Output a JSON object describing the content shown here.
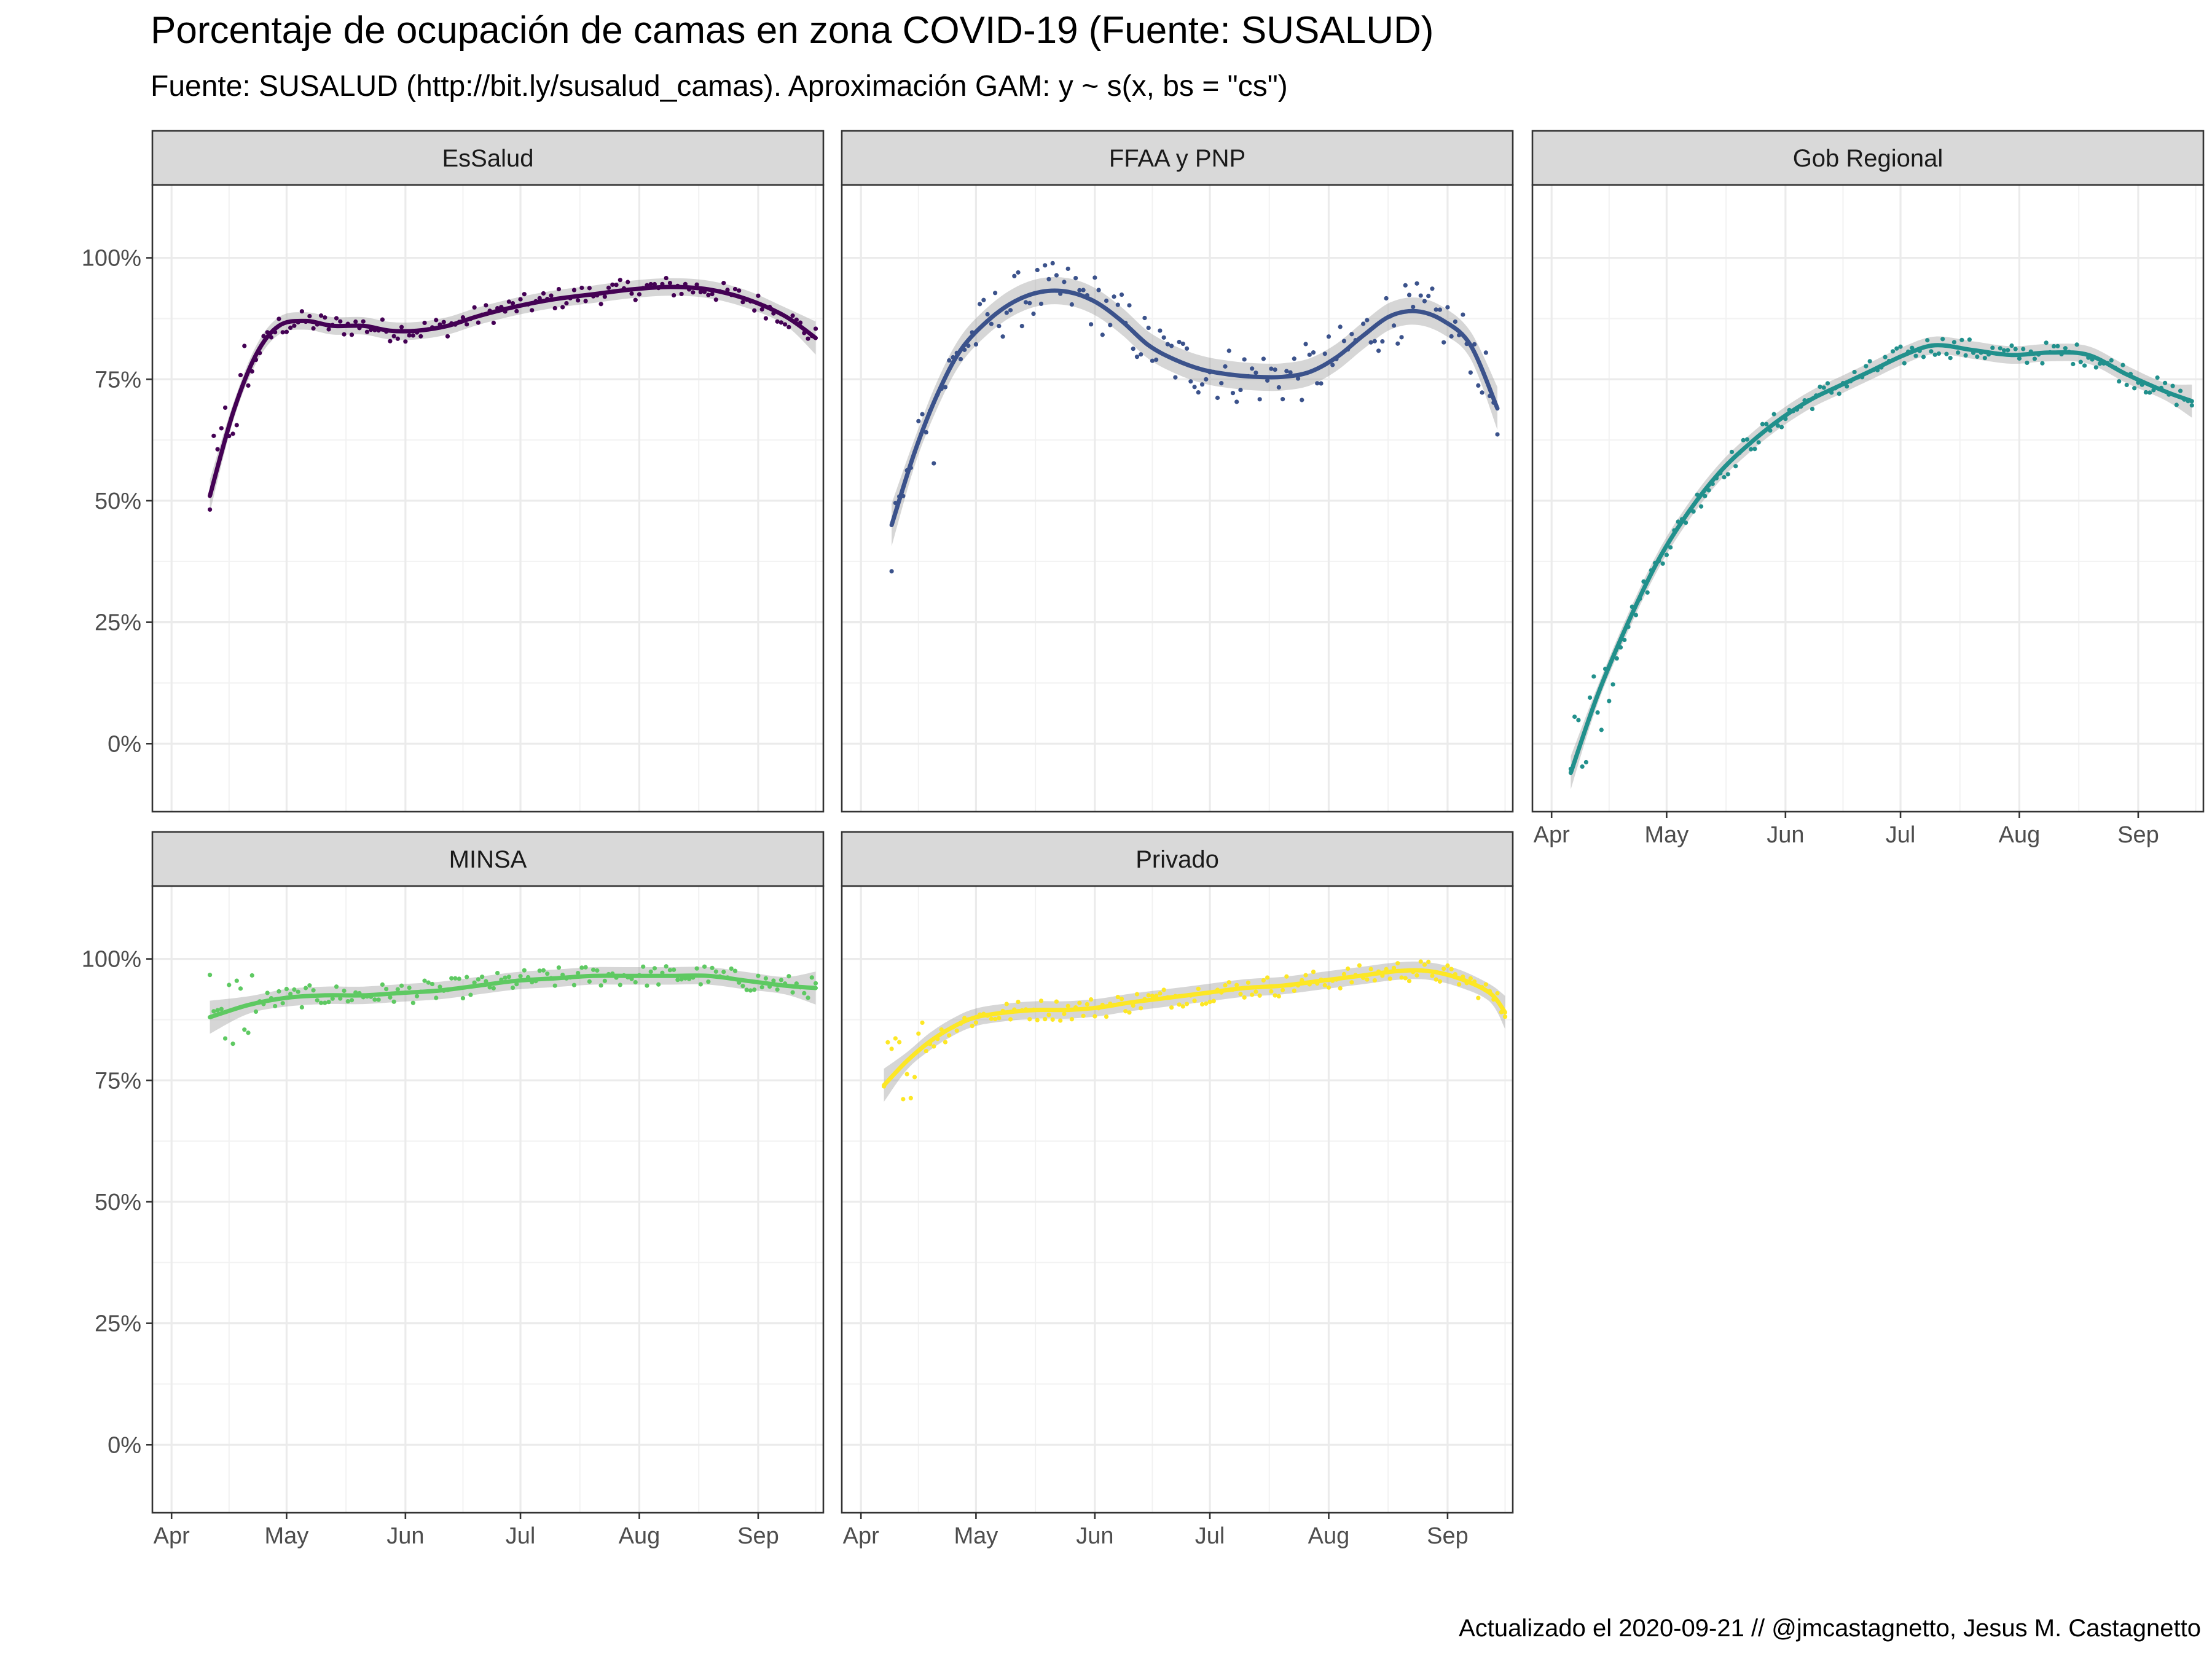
{
  "title": "Porcentaje de ocupación de camas en zona COVID-19 (Fuente: SUSALUD)",
  "subtitle": "Fuente: SUSALUD (http://bit.ly/susalud_camas). Aproximación GAM: y ~ s(x, bs = \"cs\")",
  "caption": "Actualizado el 2020-09-21 // @jmcastagnetto, Jesus M. Castagnetto",
  "chart_data": {
    "type": "line",
    "description_of_layout": "faceted",
    "x_ticks": [
      "Apr",
      "May",
      "Jun",
      "Jul",
      "Aug",
      "Sep"
    ],
    "x_tick_days": [
      0,
      30,
      61,
      91,
      122,
      153
    ],
    "x_range_days": [
      -5,
      170
    ],
    "y_ticks": [
      "0%",
      "25%",
      "50%",
      "75%",
      "100%"
    ],
    "y_tick_values": [
      0,
      25,
      50,
      75,
      100
    ],
    "ylim": [
      -14,
      115
    ],
    "panels": [
      {
        "name": "EsSalud",
        "color": "#440154",
        "x": [
          10,
          16,
          22,
          28,
          35,
          42,
          50,
          57,
          64,
          72,
          80,
          90,
          100,
          110,
          120,
          130,
          140,
          150,
          160,
          168
        ],
        "y": [
          51,
          68,
          80,
          86,
          87,
          86,
          86,
          85,
          85,
          86,
          88,
          90,
          91.5,
          92.5,
          93.5,
          94,
          93.5,
          91.5,
          88,
          83.5
        ]
      },
      {
        "name": "FFAA y PNP",
        "color": "#3b528b",
        "x": [
          8,
          14,
          20,
          26,
          33,
          40,
          47,
          54,
          61,
          68,
          75,
          82,
          89,
          96,
          103,
          110,
          117,
          124,
          131,
          138,
          145,
          152,
          159,
          166
        ],
        "y": [
          45,
          60,
          72,
          81,
          87,
          91,
          93,
          93,
          91,
          87,
          82,
          79,
          77,
          76,
          75.5,
          75.5,
          76.5,
          79.5,
          84,
          88,
          89,
          87,
          82,
          69
        ]
      },
      {
        "name": "Gob Regional",
        "color": "#21908c",
        "x": [
          5,
          12,
          20,
          28,
          36,
          44,
          52,
          60,
          68,
          76,
          84,
          92,
          100,
          110,
          120,
          130,
          140,
          150,
          160,
          167
        ],
        "y": [
          -6,
          10,
          25,
          38,
          48,
          56,
          62,
          67,
          71,
          74,
          77,
          80,
          82,
          81,
          80,
          80.5,
          80,
          76,
          72.5,
          70.5
        ]
      },
      {
        "name": "MINSA",
        "color": "#5ec962",
        "x": [
          10,
          20,
          30,
          40,
          50,
          60,
          70,
          80,
          90,
          100,
          110,
          120,
          130,
          140,
          150,
          160,
          168
        ],
        "y": [
          88,
          90.5,
          92,
          92.5,
          92.5,
          93,
          93.5,
          94.5,
          95.5,
          96,
          96.5,
          96.5,
          96.5,
          96.5,
          95.5,
          94.5,
          94
        ]
      },
      {
        "name": "Privado",
        "color": "#fde725",
        "x": [
          6,
          12,
          18,
          24,
          30,
          38,
          46,
          54,
          62,
          70,
          80,
          90,
          100,
          110,
          120,
          130,
          140,
          148,
          156,
          164,
          168
        ],
        "y": [
          74,
          79,
          83,
          86,
          88,
          89,
          89.5,
          89.5,
          90,
          91,
          92,
          93,
          94,
          94.5,
          95.5,
          96.5,
          97.5,
          97.5,
          96,
          93,
          89
        ]
      }
    ]
  }
}
